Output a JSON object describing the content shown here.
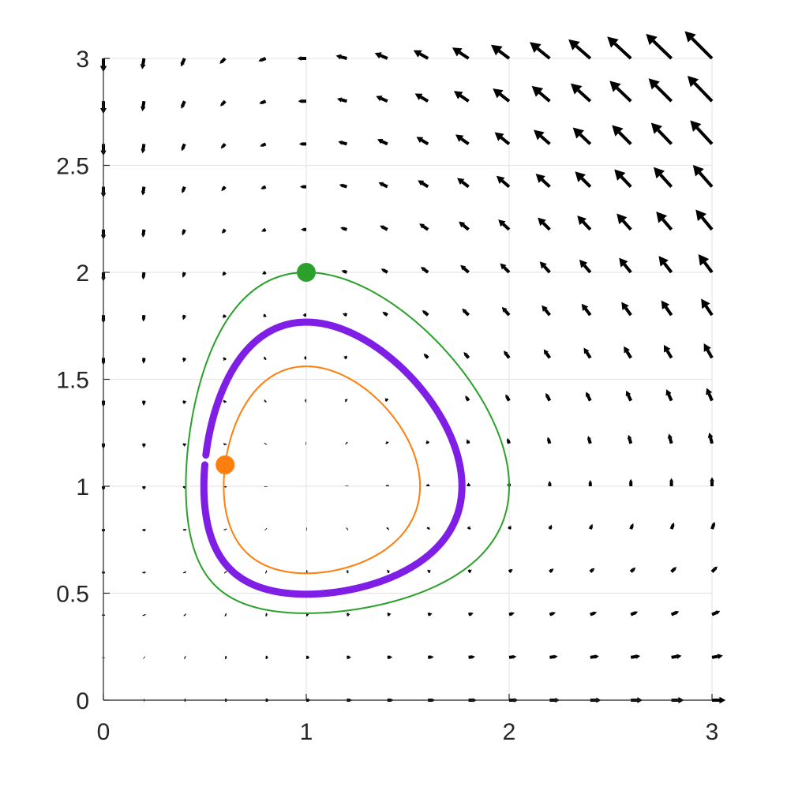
{
  "chart_data": {
    "type": "quiver",
    "title": "",
    "xlabel": "",
    "ylabel": "",
    "xlim": [
      0,
      3
    ],
    "ylim": [
      0,
      3
    ],
    "xticks": [
      0,
      1,
      2,
      3
    ],
    "yticks": [
      0,
      0.5,
      1,
      1.5,
      2,
      2.5,
      3
    ],
    "xtick_labels": [
      "0",
      "1",
      "2",
      "3"
    ],
    "ytick_labels": [
      "0",
      "0.5",
      "1",
      "1.5",
      "2",
      "2.5",
      "3"
    ],
    "grid": true,
    "vector_field": {
      "system": "Lotka-Volterra",
      "dx": "x - x*y",
      "dy": "-y + x*y",
      "x_samples": [
        0,
        0.2,
        0.4,
        0.6,
        0.8,
        1.0,
        1.2,
        1.4,
        1.6,
        1.8,
        2.0,
        2.2,
        2.4,
        2.6,
        2.8,
        3.0
      ],
      "y_samples": [
        0,
        0.2,
        0.4,
        0.6,
        0.8,
        1.0,
        1.2,
        1.4,
        1.6,
        1.8,
        2.0,
        2.2,
        2.4,
        2.6,
        2.8,
        3.0
      ],
      "color": "#000000"
    },
    "series": [
      {
        "kind": "trajectory",
        "color": "#2ca02c",
        "start": [
          1.0,
          2.0
        ],
        "t_end": 16.5
      },
      {
        "kind": "trajectory",
        "color": "#ff7f0e",
        "start": [
          0.6,
          1.1
        ],
        "t_end": 17
      },
      {
        "kind": "periodic-orbit",
        "color": "#7f1fe6",
        "start": [
          0.5,
          1.1
        ],
        "t_end": 6.4
      }
    ],
    "markers": [
      {
        "x": 1.0,
        "y": 2.0,
        "color": "#2ca02c"
      },
      {
        "x": 0.6,
        "y": 1.1,
        "color": "#ff7f0e"
      }
    ]
  }
}
